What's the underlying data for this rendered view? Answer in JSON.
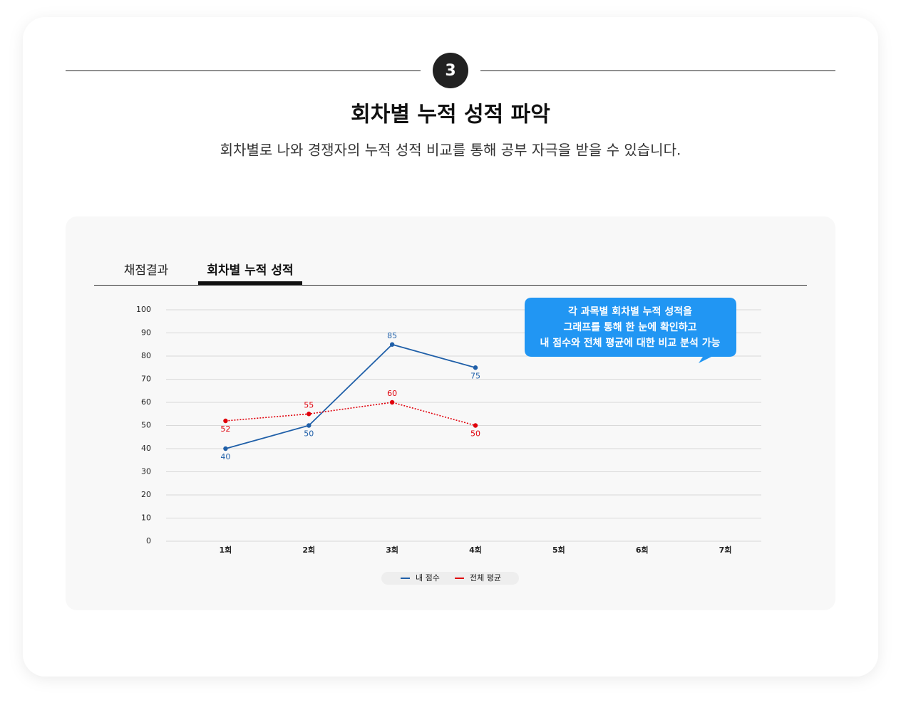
{
  "header": {
    "step": "3",
    "title": "회차별 누적 성적 파악",
    "subtitle": "회차별로 나와 경쟁자의 누적 성적 비교를 통해 공부 자극을 받을 수 있습니다."
  },
  "tabs": [
    "채점결과",
    "회차별 누적 성적"
  ],
  "callout": {
    "lines": [
      "각 과목별 회차별 누적 성적을",
      "그래프를 통해 한 눈에 확인하고",
      "내 점수와 전체 평균에 대한 비교 분석 가능"
    ]
  },
  "chart_data": {
    "type": "line",
    "categories": [
      "1회",
      "2회",
      "3회",
      "4회",
      "5회",
      "6회",
      "7회"
    ],
    "series": [
      {
        "name": "내 점수",
        "color": "#1f5fa8",
        "values": [
          40,
          50,
          85,
          75,
          null,
          null,
          null
        ]
      },
      {
        "name": "전체 평균",
        "color": "#e0000b",
        "dashed": true,
        "values": [
          52,
          55,
          60,
          50,
          null,
          null,
          null
        ]
      }
    ],
    "ylim": [
      0,
      100
    ],
    "yticks": [
      0,
      10,
      20,
      30,
      40,
      50,
      60,
      70,
      80,
      90,
      100
    ],
    "grid": true,
    "legend": "bottom"
  }
}
